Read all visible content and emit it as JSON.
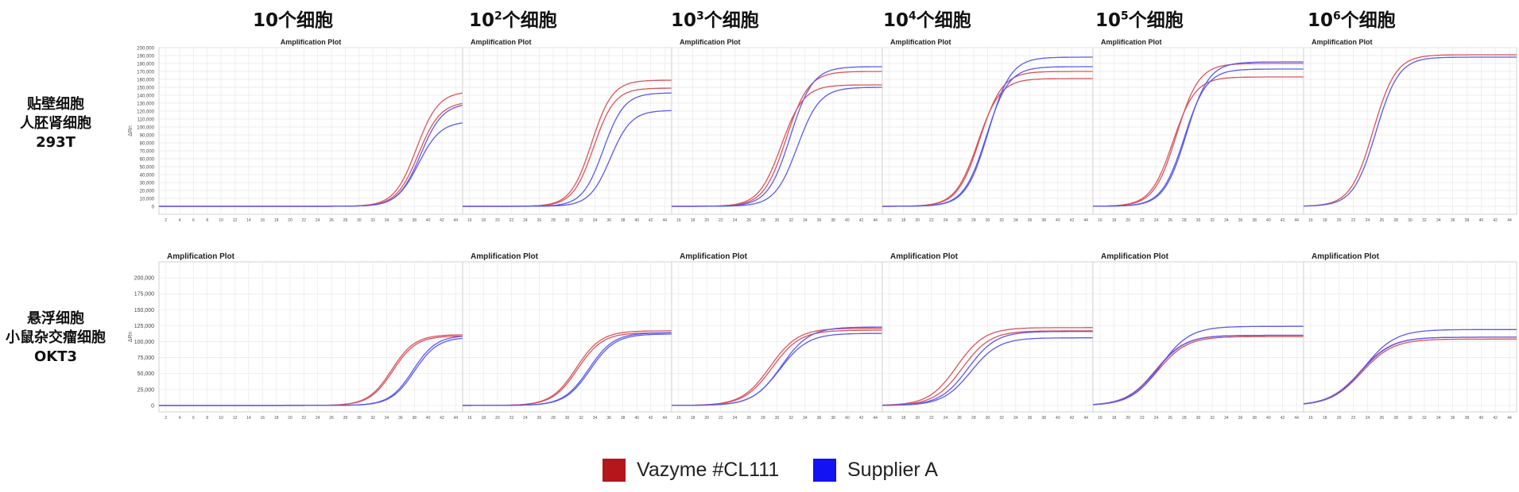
{
  "col_headers": [
    {
      "base": "10",
      "sup": "",
      "suffix": "个细胞"
    },
    {
      "base": "10",
      "sup": "2",
      "suffix": "个细胞"
    },
    {
      "base": "10",
      "sup": "3",
      "suffix": "个细胞"
    },
    {
      "base": "10",
      "sup": "4",
      "suffix": "个细胞"
    },
    {
      "base": "10",
      "sup": "5",
      "suffix": "个细胞"
    },
    {
      "base": "10",
      "sup": "6",
      "suffix": "个细胞"
    }
  ],
  "row_labels": [
    {
      "line1": "贴壁细胞",
      "line2": "人胚肾细胞",
      "line3": "293T"
    },
    {
      "line1": "悬浮细胞",
      "line2": "小鼠杂交瘤细胞",
      "line3": "OKT3"
    }
  ],
  "legend": [
    {
      "label": "Vazyme #CL111",
      "color": "#b5161c"
    },
    {
      "label": "Supplier A",
      "color": "#1212f5"
    }
  ],
  "colors": {
    "vazyme": "#d9535b",
    "supplier": "#5a5af0",
    "grid": "#e9e9e9",
    "frame": "#c8c8c8"
  },
  "chart_data": [
    {
      "type": "line",
      "row": "293T",
      "title": "Amplification Plot",
      "ylabel": "ΔRn",
      "ylim": [
        -10000,
        200000
      ],
      "yticks": [
        "0",
        "10,000",
        "20,000",
        "30,000",
        "40,000",
        "50,000",
        "60,000",
        "70,000",
        "80,000",
        "90,000",
        "100,000",
        "110,000",
        "120,000",
        "130,000",
        "140,000",
        "150,000",
        "160,000",
        "170,000",
        "180,000",
        "190,000",
        "200,000"
      ],
      "panels": [
        {
          "cells": "10",
          "xlim": [
            1,
            45
          ],
          "xticks": [
            2,
            4,
            6,
            8,
            10,
            12,
            14,
            16,
            18,
            20,
            22,
            24,
            26,
            28,
            30,
            32,
            34,
            36,
            38,
            40,
            42,
            44
          ],
          "series": [
            {
              "name": "Vazyme #CL111",
              "curves": [
                {
                  "plateau": 145000,
                  "midpoint": 38.3,
                  "slope": 1.6
                },
                {
                  "plateau": 132000,
                  "midpoint": 38.6,
                  "slope": 1.6
                }
              ]
            },
            {
              "name": "Supplier A",
              "curves": [
                {
                  "plateau": 130000,
                  "midpoint": 38.9,
                  "slope": 1.6
                },
                {
                  "plateau": 107000,
                  "midpoint": 38.6,
                  "slope": 1.6
                }
              ]
            }
          ]
        },
        {
          "cells": "10²",
          "xlim": [
            15,
            45
          ],
          "xticks": [
            16,
            18,
            20,
            22,
            24,
            26,
            28,
            30,
            32,
            34,
            36,
            38,
            40,
            42,
            44
          ],
          "series": [
            {
              "name": "Vazyme #CL111",
              "curves": [
                {
                  "plateau": 159000,
                  "midpoint": 33.5,
                  "slope": 1.5
                },
                {
                  "plateau": 149000,
                  "midpoint": 33.8,
                  "slope": 1.5
                }
              ]
            },
            {
              "name": "Supplier A",
              "curves": [
                {
                  "plateau": 143000,
                  "midpoint": 35.2,
                  "slope": 1.5
                },
                {
                  "plateau": 121000,
                  "midpoint": 36.2,
                  "slope": 1.5
                }
              ]
            }
          ]
        },
        {
          "cells": "10³",
          "xlim": [
            15,
            45
          ],
          "xticks": [
            16,
            18,
            20,
            22,
            24,
            26,
            28,
            30,
            32,
            34,
            36,
            38,
            40,
            42,
            44
          ],
          "series": [
            {
              "name": "Vazyme #CL111",
              "curves": [
                {
                  "plateau": 170000,
                  "midpoint": 31.3,
                  "slope": 1.6
                },
                {
                  "plateau": 153000,
                  "midpoint": 30.6,
                  "slope": 1.6
                }
              ]
            },
            {
              "name": "Supplier A",
              "curves": [
                {
                  "plateau": 176000,
                  "midpoint": 31.9,
                  "slope": 1.6
                },
                {
                  "plateau": 150000,
                  "midpoint": 32.9,
                  "slope": 1.6
                }
              ]
            }
          ]
        },
        {
          "cells": "10⁴",
          "xlim": [
            15,
            45
          ],
          "xticks": [
            16,
            18,
            20,
            22,
            24,
            26,
            28,
            30,
            32,
            34,
            36,
            38,
            40,
            42,
            44
          ],
          "series": [
            {
              "name": "Vazyme #CL111",
              "curves": [
                {
                  "plateau": 170000,
                  "midpoint": 28.9,
                  "slope": 1.6
                },
                {
                  "plateau": 161000,
                  "midpoint": 28.6,
                  "slope": 1.6
                }
              ]
            },
            {
              "name": "Supplier A",
              "curves": [
                {
                  "plateau": 188000,
                  "midpoint": 30.1,
                  "slope": 1.6
                },
                {
                  "plateau": 176000,
                  "midpoint": 29.8,
                  "slope": 1.6
                }
              ]
            }
          ]
        },
        {
          "cells": "10⁵",
          "xlim": [
            15,
            45
          ],
          "xticks": [
            16,
            18,
            20,
            22,
            24,
            26,
            28,
            30,
            32,
            34,
            36,
            38,
            40,
            42,
            44
          ],
          "series": [
            {
              "name": "Vazyme #CL111",
              "curves": [
                {
                  "plateau": 180000,
                  "midpoint": 26.9,
                  "slope": 1.6
                },
                {
                  "plateau": 163000,
                  "midpoint": 26.4,
                  "slope": 1.6
                }
              ]
            },
            {
              "name": "Supplier A",
              "curves": [
                {
                  "plateau": 182000,
                  "midpoint": 28.3,
                  "slope": 1.6
                },
                {
                  "plateau": 173000,
                  "midpoint": 28.0,
                  "slope": 1.6
                }
              ]
            }
          ]
        },
        {
          "cells": "10⁶",
          "xlim": [
            15,
            45
          ],
          "xticks": [
            16,
            18,
            20,
            22,
            24,
            26,
            28,
            30,
            32,
            34,
            36,
            38,
            40,
            42,
            44
          ],
          "series": [
            {
              "name": "Vazyme #CL111",
              "curves": [
                {
                  "plateau": 191000,
                  "midpoint": 24.8,
                  "slope": 1.6
                }
              ]
            },
            {
              "name": "Supplier A",
              "curves": [
                {
                  "plateau": 188000,
                  "midpoint": 25.2,
                  "slope": 1.6
                }
              ]
            }
          ]
        }
      ]
    },
    {
      "type": "line",
      "row": "OKT3",
      "title": "Amplification Plot",
      "ylabel": "ΔRn",
      "ylim": [
        -10000,
        225000
      ],
      "yticks": [
        "0",
        "25,000",
        "50,000",
        "75,000",
        "100,000",
        "125,000",
        "150,000",
        "175,000",
        "200,000"
      ],
      "panels": [
        {
          "cells": "10",
          "xlim": [
            1,
            45
          ],
          "xticks": [
            2,
            4,
            6,
            8,
            10,
            12,
            14,
            16,
            18,
            20,
            22,
            24,
            26,
            28,
            30,
            32,
            34,
            36,
            38,
            40,
            42,
            44
          ],
          "series": [
            {
              "name": "Vazyme #CL111",
              "curves": [
                {
                  "plateau": 111000,
                  "midpoint": 34.7,
                  "slope": 1.7
                },
                {
                  "plateau": 109000,
                  "midpoint": 34.9,
                  "slope": 1.7
                }
              ]
            },
            {
              "name": "Supplier A",
              "curves": [
                {
                  "plateau": 110000,
                  "midpoint": 37.8,
                  "slope": 1.7
                },
                {
                  "plateau": 107000,
                  "midpoint": 38.0,
                  "slope": 1.7
                }
              ]
            }
          ]
        },
        {
          "cells": "10²",
          "xlim": [
            15,
            45
          ],
          "xticks": [
            16,
            18,
            20,
            22,
            24,
            26,
            28,
            30,
            32,
            34,
            36,
            38,
            40,
            42,
            44
          ],
          "series": [
            {
              "name": "Vazyme #CL111",
              "curves": [
                {
                  "plateau": 117000,
                  "midpoint": 31.3,
                  "slope": 1.8
                },
                {
                  "plateau": 114000,
                  "midpoint": 31.5,
                  "slope": 1.8
                }
              ]
            },
            {
              "name": "Supplier A",
              "curves": [
                {
                  "plateau": 114000,
                  "midpoint": 33.1,
                  "slope": 1.8
                },
                {
                  "plateau": 112000,
                  "midpoint": 33.3,
                  "slope": 1.8
                }
              ]
            }
          ]
        },
        {
          "cells": "10³",
          "xlim": [
            15,
            45
          ],
          "xticks": [
            16,
            18,
            20,
            22,
            24,
            26,
            28,
            30,
            32,
            34,
            36,
            38,
            40,
            42,
            44
          ],
          "series": [
            {
              "name": "Vazyme #CL111",
              "curves": [
                {
                  "plateau": 121000,
                  "midpoint": 29.0,
                  "slope": 2.0
                },
                {
                  "plateau": 118000,
                  "midpoint": 29.3,
                  "slope": 2.0
                }
              ]
            },
            {
              "name": "Supplier A",
              "curves": [
                {
                  "plateau": 123000,
                  "midpoint": 30.6,
                  "slope": 2.0
                },
                {
                  "plateau": 113000,
                  "midpoint": 30.4,
                  "slope": 2.0
                }
              ]
            }
          ]
        },
        {
          "cells": "10⁴",
          "xlim": [
            15,
            45
          ],
          "xticks": [
            16,
            18,
            20,
            22,
            24,
            26,
            28,
            30,
            32,
            34,
            36,
            38,
            40,
            42,
            44
          ],
          "series": [
            {
              "name": "Vazyme #CL111",
              "curves": [
                {
                  "plateau": 122000,
                  "midpoint": 25.6,
                  "slope": 2.0
                },
                {
                  "plateau": 117000,
                  "midpoint": 26.4,
                  "slope": 2.0
                }
              ]
            },
            {
              "name": "Supplier A",
              "curves": [
                {
                  "plateau": 116000,
                  "midpoint": 27.2,
                  "slope": 2.0
                },
                {
                  "plateau": 106000,
                  "midpoint": 27.6,
                  "slope": 2.0
                }
              ]
            }
          ]
        },
        {
          "cells": "10⁵",
          "xlim": [
            15,
            45
          ],
          "xticks": [
            16,
            18,
            20,
            22,
            24,
            26,
            28,
            30,
            32,
            34,
            36,
            38,
            40,
            42,
            44
          ],
          "series": [
            {
              "name": "Vazyme #CL111",
              "curves": [
                {
                  "plateau": 110000,
                  "midpoint": 23.9,
                  "slope": 2.1
                },
                {
                  "plateau": 108000,
                  "midpoint": 24.2,
                  "slope": 2.1
                }
              ]
            },
            {
              "name": "Supplier A",
              "curves": [
                {
                  "plateau": 124000,
                  "midpoint": 24.6,
                  "slope": 2.1
                },
                {
                  "plateau": 110000,
                  "midpoint": 24.0,
                  "slope": 2.1
                }
              ]
            }
          ]
        },
        {
          "cells": "10⁶",
          "xlim": [
            15,
            45
          ],
          "xticks": [
            16,
            18,
            20,
            22,
            24,
            26,
            28,
            30,
            32,
            34,
            36,
            38,
            40,
            42,
            44
          ],
          "series": [
            {
              "name": "Vazyme #CL111",
              "curves": [
                {
                  "plateau": 107000,
                  "midpoint": 23.0,
                  "slope": 2.2
                },
                {
                  "plateau": 104000,
                  "midpoint": 23.2,
                  "slope": 2.2
                }
              ]
            },
            {
              "name": "Supplier A",
              "curves": [
                {
                  "plateau": 119000,
                  "midpoint": 23.5,
                  "slope": 2.2
                },
                {
                  "plateau": 107000,
                  "midpoint": 23.1,
                  "slope": 2.2
                }
              ]
            }
          ]
        }
      ]
    }
  ]
}
